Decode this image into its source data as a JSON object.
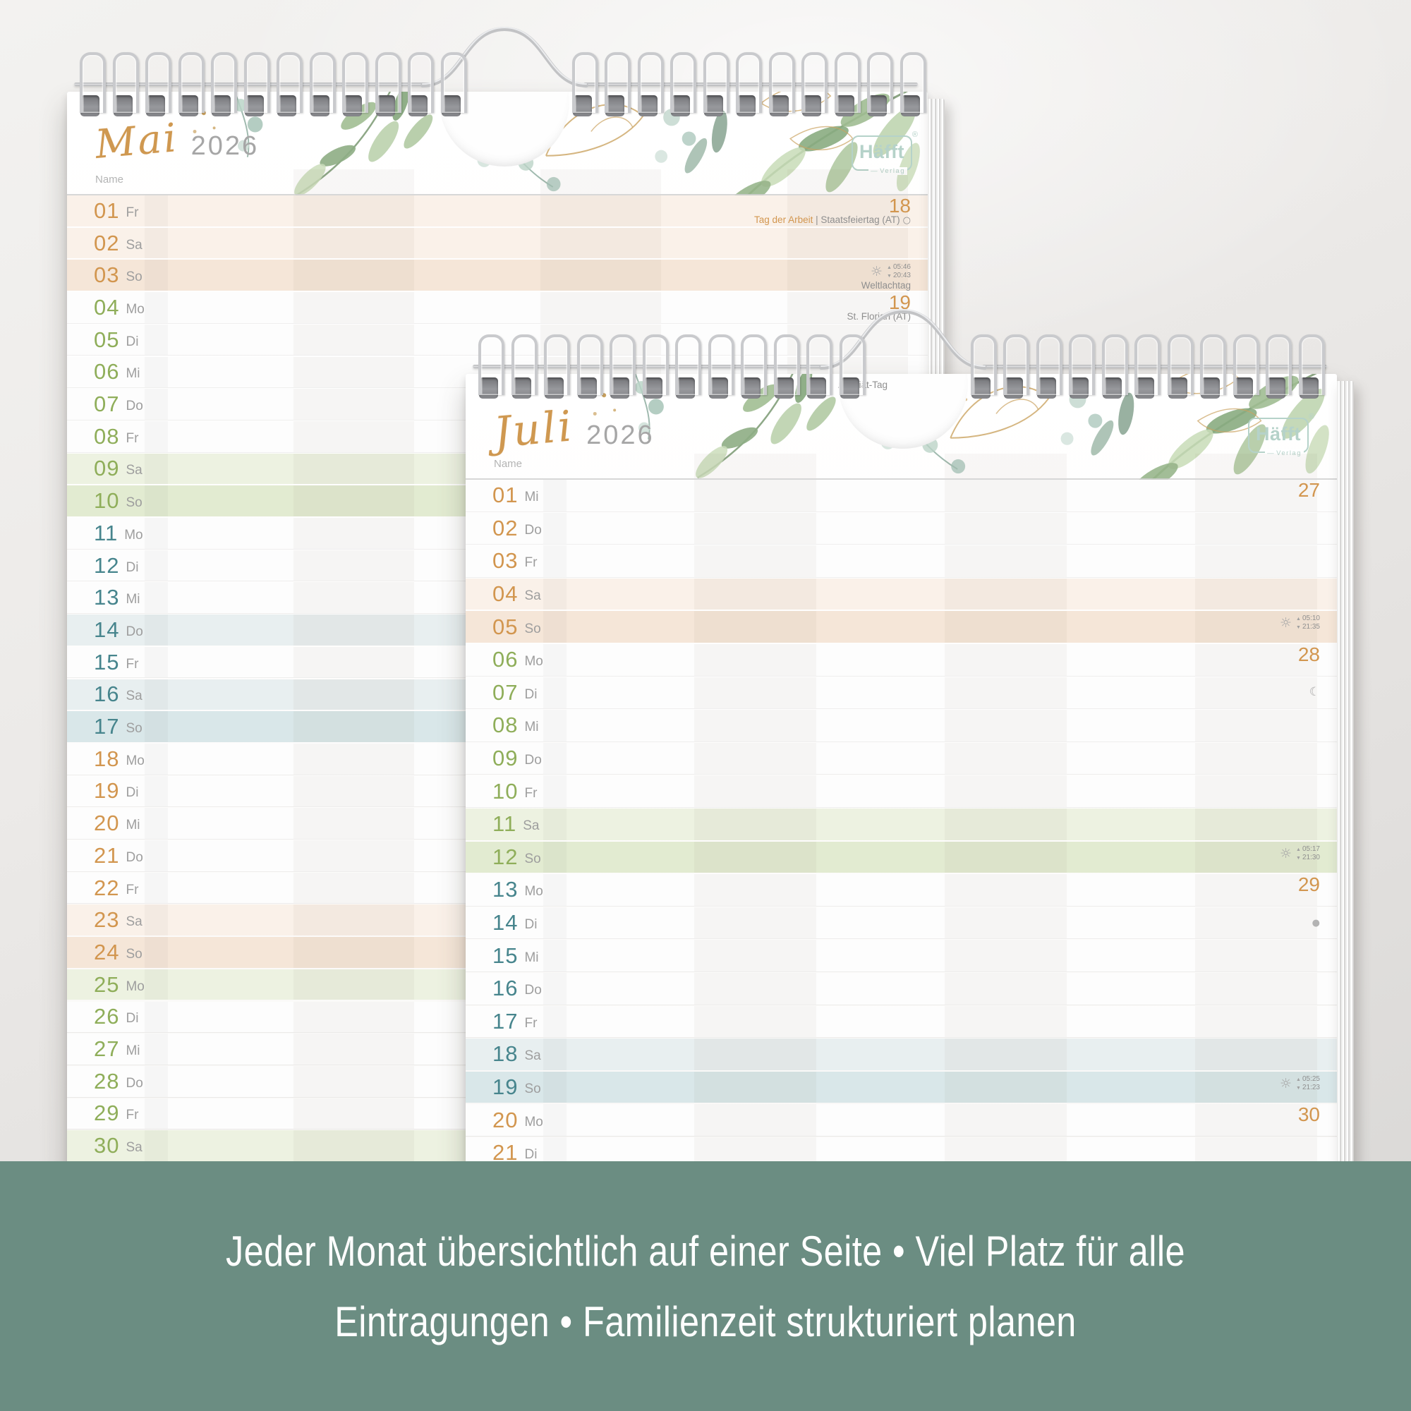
{
  "palette": {
    "orange": "#d2964f",
    "green": "#8fae5a",
    "teal": "#47858d",
    "gold": "#c9a05b",
    "gold2": "#cf9850",
    "mint": "#b5d2c9",
    "banner": "#6b8d82",
    "peach1": "#faf1e9",
    "peach2": "#f5e6d8",
    "green1": "#edf2e1",
    "green2": "#e2ebd1",
    "blue1": "#e8eff0",
    "blue2": "#d9e7e9"
  },
  "banner": {
    "line1": "Jeder Monat übersichtlich auf einer Seite • Viel Platz für alle",
    "line2": "Eintragungen • Familienzeit strukturiert planen"
  },
  "brand": {
    "name": "Häfft",
    "sub": "Verlag",
    "registered": "®"
  },
  "calendars": [
    {
      "id": "mai",
      "month": "Mai",
      "year": "2026",
      "name_label": "Name",
      "cutout_note": "",
      "days": [
        {
          "n": "01",
          "d": "Fr",
          "wk": "orange",
          "bg": "peach1",
          "info": {
            "week": "18",
            "holiday": [
              [
                "Tag der Arbeit",
                "accent"
              ],
              [
                " | Staatsfeiertag (AT)",
                "plain"
              ]
            ],
            "moon_inline": "full"
          }
        },
        {
          "n": "02",
          "d": "Sa",
          "wk": "orange",
          "bg": "peach1"
        },
        {
          "n": "03",
          "d": "So",
          "wk": "orange",
          "bg": "peach2",
          "info": {
            "sun": {
              "rise": "05:46",
              "set": "20:43"
            },
            "note": "Weltlachtag"
          }
        },
        {
          "n": "04",
          "d": "Mo",
          "wk": "green",
          "bg": "none",
          "info": {
            "week": "19",
            "note": "St. Florian (AT)"
          }
        },
        {
          "n": "05",
          "d": "Di",
          "wk": "green",
          "bg": "none"
        },
        {
          "n": "06",
          "d": "Mi",
          "wk": "green",
          "bg": "none"
        },
        {
          "n": "07",
          "d": "Do",
          "wk": "green",
          "bg": "none"
        },
        {
          "n": "08",
          "d": "Fr",
          "wk": "green",
          "bg": "none"
        },
        {
          "n": "09",
          "d": "Sa",
          "wk": "green",
          "bg": "green1"
        },
        {
          "n": "10",
          "d": "So",
          "wk": "green",
          "bg": "green2"
        },
        {
          "n": "11",
          "d": "Mo",
          "wk": "teal",
          "bg": "none"
        },
        {
          "n": "12",
          "d": "Di",
          "wk": "teal",
          "bg": "none"
        },
        {
          "n": "13",
          "d": "Mi",
          "wk": "teal",
          "bg": "none"
        },
        {
          "n": "14",
          "d": "Do",
          "wk": "teal",
          "bg": "blue1"
        },
        {
          "n": "15",
          "d": "Fr",
          "wk": "teal",
          "bg": "none"
        },
        {
          "n": "16",
          "d": "Sa",
          "wk": "teal",
          "bg": "blue1"
        },
        {
          "n": "17",
          "d": "So",
          "wk": "teal",
          "bg": "blue2"
        },
        {
          "n": "18",
          "d": "Mo",
          "wk": "orange",
          "bg": "none"
        },
        {
          "n": "19",
          "d": "Di",
          "wk": "orange",
          "bg": "none"
        },
        {
          "n": "20",
          "d": "Mi",
          "wk": "orange",
          "bg": "none"
        },
        {
          "n": "21",
          "d": "Do",
          "wk": "orange",
          "bg": "none"
        },
        {
          "n": "22",
          "d": "Fr",
          "wk": "orange",
          "bg": "none"
        },
        {
          "n": "23",
          "d": "Sa",
          "wk": "orange",
          "bg": "peach1"
        },
        {
          "n": "24",
          "d": "So",
          "wk": "orange",
          "bg": "peach2"
        },
        {
          "n": "25",
          "d": "Mo",
          "wk": "green",
          "bg": "green1"
        },
        {
          "n": "26",
          "d": "Di",
          "wk": "green",
          "bg": "none"
        },
        {
          "n": "27",
          "d": "Mi",
          "wk": "green",
          "bg": "none"
        },
        {
          "n": "28",
          "d": "Do",
          "wk": "green",
          "bg": "none"
        },
        {
          "n": "29",
          "d": "Fr",
          "wk": "green",
          "bg": "none"
        },
        {
          "n": "30",
          "d": "Sa",
          "wk": "green",
          "bg": "green1"
        }
      ]
    },
    {
      "id": "juli",
      "month": "Juli",
      "year": "2026",
      "name_label": "Name",
      "cutout_note": "r Anti-Diät-Tag",
      "days": [
        {
          "n": "01",
          "d": "Mi",
          "wk": "orange",
          "bg": "none",
          "info": {
            "week": "27"
          }
        },
        {
          "n": "02",
          "d": "Do",
          "wk": "orange",
          "bg": "none"
        },
        {
          "n": "03",
          "d": "Fr",
          "wk": "orange",
          "bg": "none"
        },
        {
          "n": "04",
          "d": "Sa",
          "wk": "orange",
          "bg": "peach1"
        },
        {
          "n": "05",
          "d": "So",
          "wk": "orange",
          "bg": "peach2",
          "info": {
            "sun": {
              "rise": "05:10",
              "set": "21:35"
            }
          }
        },
        {
          "n": "06",
          "d": "Mo",
          "wk": "green",
          "bg": "none",
          "info": {
            "week": "28"
          }
        },
        {
          "n": "07",
          "d": "Di",
          "wk": "green",
          "bg": "none",
          "info": {
            "moon": "lastq"
          }
        },
        {
          "n": "08",
          "d": "Mi",
          "wk": "green",
          "bg": "none"
        },
        {
          "n": "09",
          "d": "Do",
          "wk": "green",
          "bg": "none"
        },
        {
          "n": "10",
          "d": "Fr",
          "wk": "green",
          "bg": "none"
        },
        {
          "n": "11",
          "d": "Sa",
          "wk": "green",
          "bg": "green1"
        },
        {
          "n": "12",
          "d": "So",
          "wk": "green",
          "bg": "green2",
          "info": {
            "sun": {
              "rise": "05:17",
              "set": "21:30"
            }
          }
        },
        {
          "n": "13",
          "d": "Mo",
          "wk": "teal",
          "bg": "none",
          "info": {
            "week": "29"
          }
        },
        {
          "n": "14",
          "d": "Di",
          "wk": "teal",
          "bg": "none",
          "info": {
            "moon": "new"
          }
        },
        {
          "n": "15",
          "d": "Mi",
          "wk": "teal",
          "bg": "none"
        },
        {
          "n": "16",
          "d": "Do",
          "wk": "teal",
          "bg": "none"
        },
        {
          "n": "17",
          "d": "Fr",
          "wk": "teal",
          "bg": "none"
        },
        {
          "n": "18",
          "d": "Sa",
          "wk": "teal",
          "bg": "blue1"
        },
        {
          "n": "19",
          "d": "So",
          "wk": "teal",
          "bg": "blue2",
          "info": {
            "sun": {
              "rise": "05:25",
              "set": "21:23"
            }
          }
        },
        {
          "n": "20",
          "d": "Mo",
          "wk": "orange",
          "bg": "none",
          "info": {
            "week": "30"
          }
        },
        {
          "n": "21",
          "d": "Di",
          "wk": "orange",
          "bg": "none"
        }
      ]
    }
  ]
}
